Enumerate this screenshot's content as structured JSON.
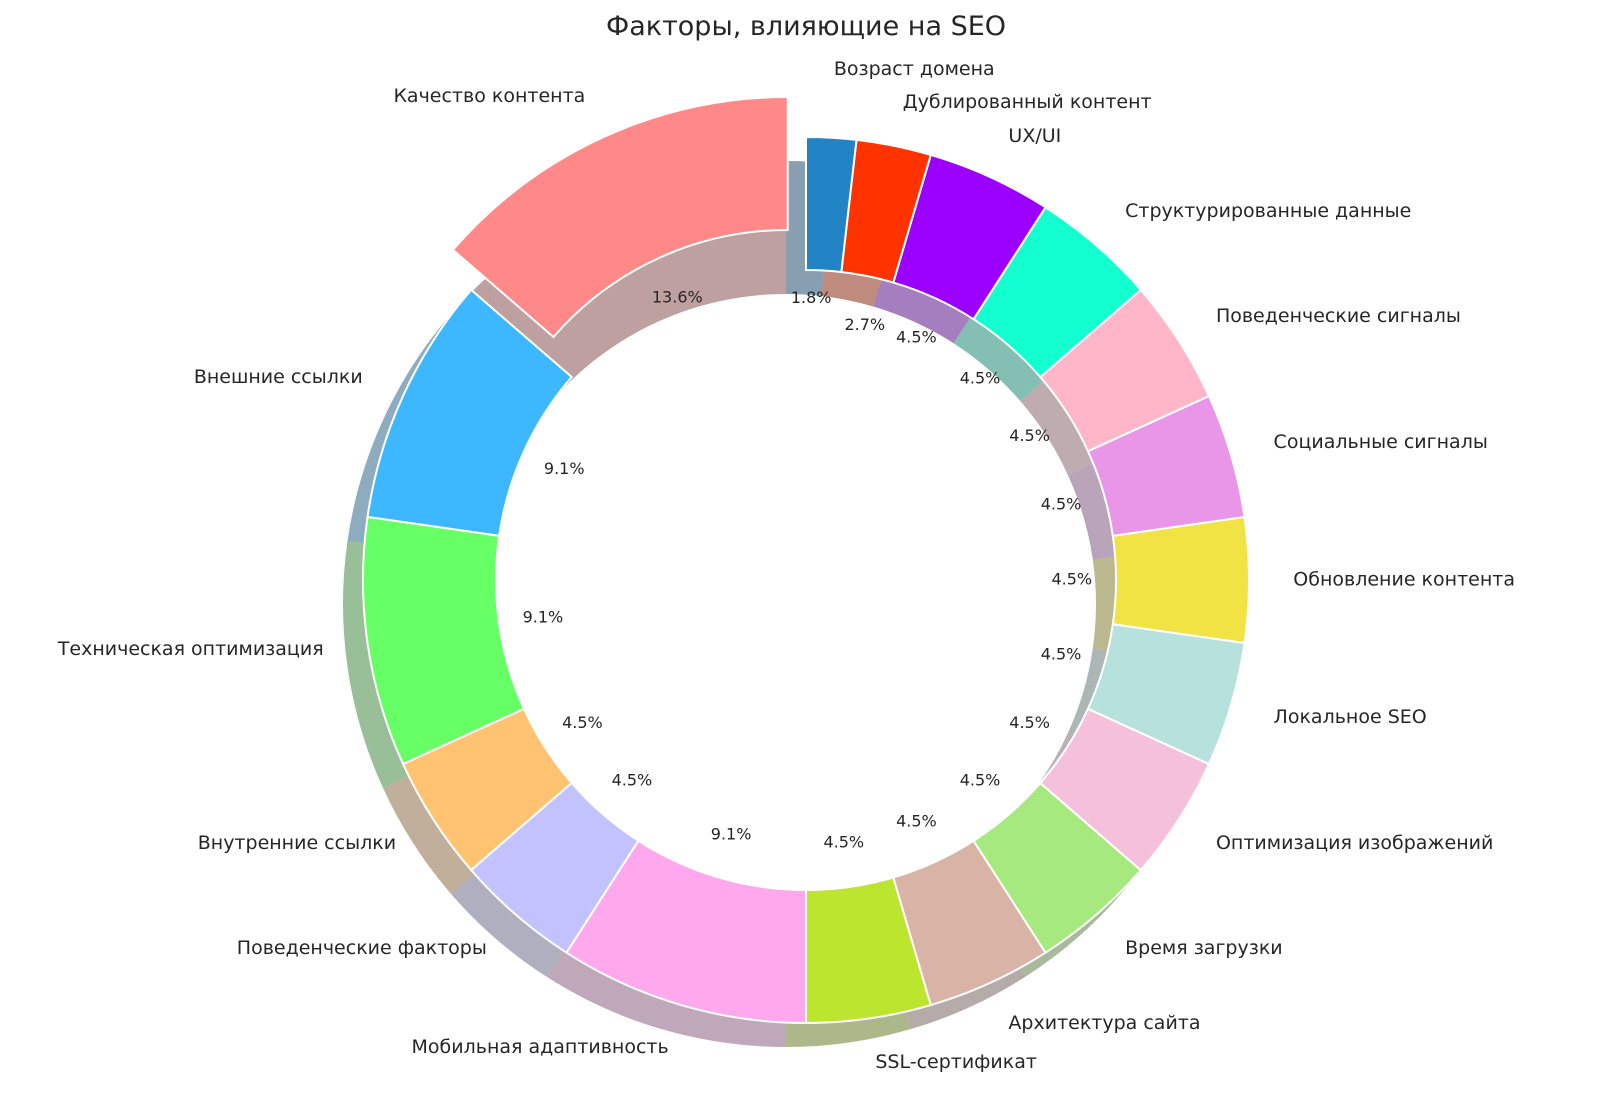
{
  "chart_data": {
    "type": "pie",
    "subtype": "donut",
    "title": "Факторы, влияющие на SEO",
    "start_angle_deg": 90,
    "direction": "counterclockwise",
    "shadow": true,
    "exploded": [
      "Качество контента"
    ],
    "slices": [
      {
        "label": "Качество контента",
        "value": 15,
        "pct": "13.6%",
        "color": "#ff8888"
      },
      {
        "label": "Внешние ссылки",
        "value": 10,
        "pct": "9.1%",
        "color": "#3db8ff"
      },
      {
        "label": "Техническая оптимизация",
        "value": 10,
        "pct": "9.1%",
        "color": "#66ff66"
      },
      {
        "label": "Внутренние ссылки",
        "value": 5,
        "pct": "4.5%",
        "color": "#ffc371"
      },
      {
        "label": "Поведенческие факторы",
        "value": 5,
        "pct": "4.5%",
        "color": "#c2c2ff"
      },
      {
        "label": "Мобильная адаптивность",
        "value": 10,
        "pct": "9.1%",
        "color": "#ffa8ee"
      },
      {
        "label": "SSL-сертификат",
        "value": 5,
        "pct": "4.5%",
        "color": "#bce530"
      },
      {
        "label": "Архитектура сайта",
        "value": 5,
        "pct": "4.5%",
        "color": "#d9b3a6"
      },
      {
        "label": "Время загрузки",
        "value": 5,
        "pct": "4.5%",
        "color": "#a6e97f"
      },
      {
        "label": "Оптимизация изображений",
        "value": 5,
        "pct": "4.5%",
        "color": "#f5c0dc"
      },
      {
        "label": "Локальное SEO",
        "value": 5,
        "pct": "4.5%",
        "color": "#b6e1dc"
      },
      {
        "label": "Обновление контента",
        "value": 5,
        "pct": "4.5%",
        "color": "#f2e345"
      },
      {
        "label": "Социальные сигналы",
        "value": 5,
        "pct": "4.5%",
        "color": "#e996e9"
      },
      {
        "label": "Поведенческие сигналы",
        "value": 5,
        "pct": "4.5%",
        "color": "#ffb6c8"
      },
      {
        "label": "Структурированные данные",
        "value": 5,
        "pct": "4.5%",
        "color": "#13ffcf"
      },
      {
        "label": "UX/UI",
        "value": 5,
        "pct": "4.5%",
        "color": "#9b00ff"
      },
      {
        "label": "Дублированный контент",
        "value": 3,
        "pct": "2.7%",
        "color": "#ff3300"
      },
      {
        "label": "Возраст домена",
        "value": 2,
        "pct": "1.8%",
        "color": "#2284c5"
      }
    ]
  }
}
